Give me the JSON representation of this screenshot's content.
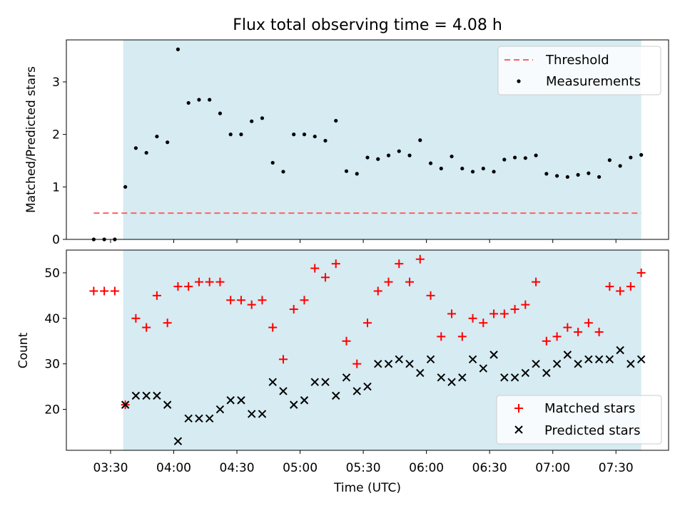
{
  "chart_data": {
    "type": "scatter",
    "title": "Flux total observing time = 4.08 h",
    "xlabel": "Time (UTC)",
    "x_ticks": [
      "03:30",
      "04:00",
      "04:30",
      "05:00",
      "05:30",
      "06:00",
      "06:30",
      "07:00",
      "07:30"
    ],
    "x_range": [
      "03:09",
      "07:55"
    ],
    "shaded_range": [
      "03:36",
      "07:42"
    ],
    "shade_color": "#add8e6",
    "top_panel": {
      "ylabel": "Matched/Predicted stars",
      "ylim": [
        0,
        3.8
      ],
      "y_ticks": [
        "0",
        "1",
        "2",
        "3"
      ],
      "legend": [
        "Threshold",
        "Measurements"
      ],
      "legend_location": "upper right",
      "threshold": {
        "name": "Threshold",
        "value": 0.5,
        "x_range": [
          "03:22",
          "07:42"
        ],
        "color": "#ff6060",
        "style": "dashed"
      },
      "series": [
        {
          "name": "Measurements",
          "color": "#000000",
          "marker": "dot",
          "x": [
            "03:22",
            "03:27",
            "03:32",
            "03:37",
            "03:42",
            "03:47",
            "03:52",
            "03:57",
            "04:02",
            "04:07",
            "04:12",
            "04:17",
            "04:22",
            "04:27",
            "04:32",
            "04:37",
            "04:42",
            "04:47",
            "04:52",
            "04:57",
            "05:02",
            "05:07",
            "05:12",
            "05:17",
            "05:22",
            "05:27",
            "05:32",
            "05:37",
            "05:42",
            "05:47",
            "05:52",
            "05:57",
            "06:02",
            "06:07",
            "06:12",
            "06:17",
            "06:22",
            "06:27",
            "06:32",
            "06:37",
            "06:42",
            "06:47",
            "06:52",
            "06:57",
            "07:02",
            "07:07",
            "07:12",
            "07:17",
            "07:22",
            "07:27",
            "07:32",
            "07:37",
            "07:42"
          ],
          "y": [
            0,
            0,
            0,
            1.0,
            1.74,
            1.65,
            1.96,
            1.85,
            3.62,
            2.6,
            2.66,
            2.66,
            2.4,
            2.0,
            2.0,
            2.25,
            2.31,
            1.46,
            1.29,
            2.0,
            2.0,
            1.96,
            1.88,
            2.26,
            1.3,
            1.25,
            1.56,
            1.53,
            1.6,
            1.68,
            1.6,
            1.89,
            1.45,
            1.35,
            1.58,
            1.35,
            1.29,
            1.35,
            1.29,
            1.52,
            1.56,
            1.55,
            1.6,
            1.25,
            1.21,
            1.19,
            1.23,
            1.26,
            1.19,
            1.51,
            1.4,
            1.56,
            1.61
          ]
        }
      ]
    },
    "bottom_panel": {
      "ylabel": "Count",
      "ylim": [
        11,
        55
      ],
      "y_ticks": [
        "20",
        "30",
        "40",
        "50"
      ],
      "legend": [
        "Matched stars",
        "Predicted stars"
      ],
      "legend_location": "lower right",
      "series": [
        {
          "name": "Matched stars",
          "color": "#ff0000",
          "marker": "plus",
          "x": [
            "03:22",
            "03:27",
            "03:32",
            "03:37",
            "03:42",
            "03:47",
            "03:52",
            "03:57",
            "04:02",
            "04:07",
            "04:12",
            "04:17",
            "04:22",
            "04:27",
            "04:32",
            "04:37",
            "04:42",
            "04:47",
            "04:52",
            "04:57",
            "05:02",
            "05:07",
            "05:12",
            "05:17",
            "05:22",
            "05:27",
            "05:32",
            "05:37",
            "05:42",
            "05:47",
            "05:52",
            "05:57",
            "06:02",
            "06:07",
            "06:12",
            "06:17",
            "06:22",
            "06:27",
            "06:32",
            "06:37",
            "06:42",
            "06:47",
            "06:52",
            "06:57",
            "07:02",
            "07:07",
            "07:12",
            "07:17",
            "07:22",
            "07:27",
            "07:32",
            "07:37",
            "07:42"
          ],
          "y": [
            46,
            46,
            46,
            21,
            40,
            38,
            45,
            39,
            47,
            47,
            48,
            48,
            48,
            44,
            44,
            43,
            44,
            38,
            31,
            42,
            44,
            51,
            49,
            52,
            35,
            30,
            39,
            46,
            48,
            52,
            48,
            53,
            45,
            36,
            41,
            36,
            40,
            39,
            41,
            41,
            42,
            43,
            48,
            35,
            36,
            38,
            37,
            39,
            37,
            47,
            46,
            47,
            50
          ]
        },
        {
          "name": "Predicted stars",
          "color": "#000000",
          "marker": "x",
          "x": [
            "03:37",
            "03:42",
            "03:47",
            "03:52",
            "03:57",
            "04:02",
            "04:07",
            "04:12",
            "04:17",
            "04:22",
            "04:27",
            "04:32",
            "04:37",
            "04:42",
            "04:47",
            "04:52",
            "04:57",
            "05:02",
            "05:07",
            "05:12",
            "05:17",
            "05:22",
            "05:27",
            "05:32",
            "05:37",
            "05:42",
            "05:47",
            "05:52",
            "05:57",
            "06:02",
            "06:07",
            "06:12",
            "06:17",
            "06:22",
            "06:27",
            "06:32",
            "06:37",
            "06:42",
            "06:47",
            "06:52",
            "06:57",
            "07:02",
            "07:07",
            "07:12",
            "07:17",
            "07:22",
            "07:27",
            "07:32",
            "07:37",
            "07:42"
          ],
          "y": [
            21,
            23,
            23,
            23,
            21,
            13,
            18,
            18,
            18,
            20,
            22,
            22,
            19,
            19,
            26,
            24,
            21,
            22,
            26,
            26,
            23,
            27,
            24,
            25,
            30,
            30,
            31,
            30,
            28,
            31,
            27,
            26,
            27,
            31,
            29,
            32,
            27,
            27,
            28,
            30,
            28,
            30,
            32,
            30,
            31,
            31,
            31,
            33,
            30,
            31
          ]
        }
      ]
    }
  }
}
